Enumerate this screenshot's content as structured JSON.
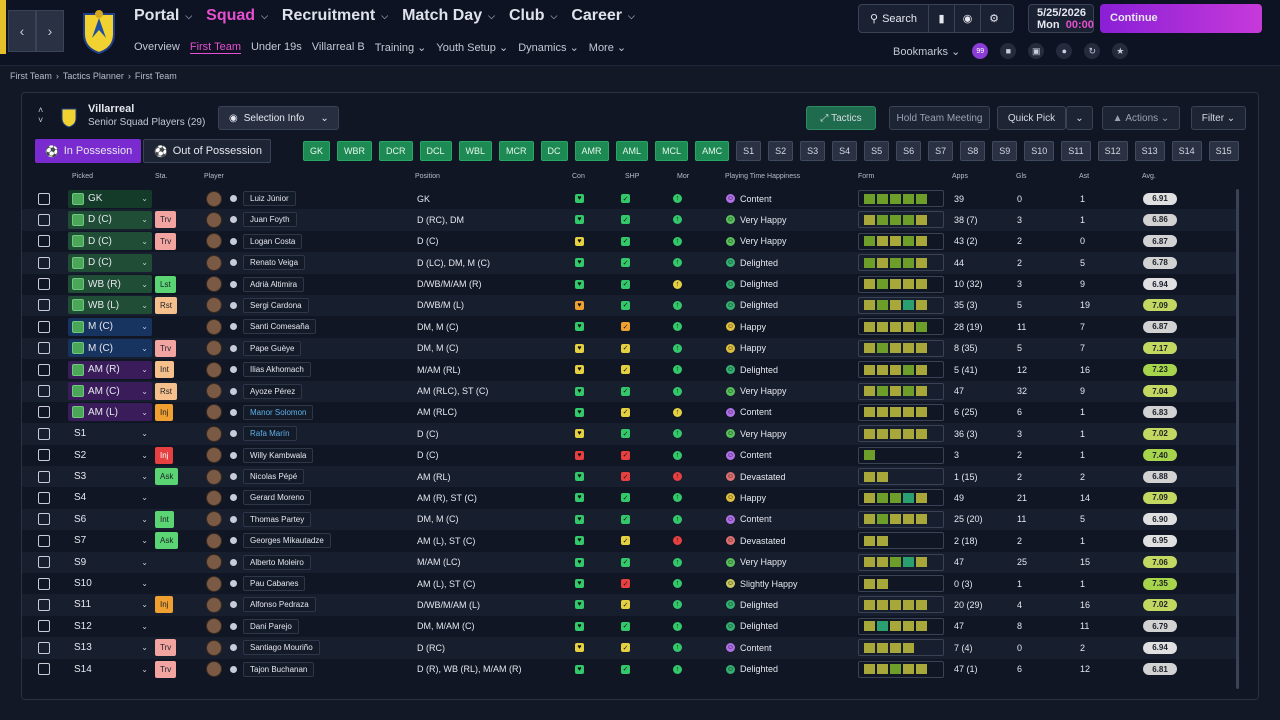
{
  "nav": {
    "main": [
      "Portal",
      "Squad",
      "Recruitment",
      "Match Day",
      "Club",
      "Career"
    ],
    "active_main": "Squad",
    "sub": [
      "Overview",
      "First Team",
      "Under 19s",
      "Villarreal B",
      "Training",
      "Youth Setup",
      "Dynamics",
      "More"
    ],
    "search_label": "Search",
    "date": "5/25/2026",
    "day": "Mon",
    "time": "00:00",
    "continue_label": "Continue",
    "bookmarks_label": "Bookmarks",
    "bookmark_badge": "99"
  },
  "breadcrumb": [
    "First Team",
    "Tactics Planner",
    "First Team"
  ],
  "panel": {
    "club": "Villarreal",
    "subtitle": "Senior Squad Players (29)",
    "selection_info": "Selection Info",
    "tactics": "Tactics",
    "meeting": "Hold Team Meeting",
    "quick_pick": "Quick Pick",
    "actions": "Actions",
    "filter": "Filter",
    "tab_in": "In Possession",
    "tab_out": "Out of Possession"
  },
  "chips": [
    "GK",
    "WBR",
    "DCR",
    "DCL",
    "WBL",
    "MCR",
    "DC",
    "AMR",
    "AML",
    "MCL",
    "AMC",
    "S1",
    "S2",
    "S3",
    "S4",
    "S5",
    "S6",
    "S7",
    "S8",
    "S9",
    "S10",
    "S11",
    "S12",
    "S13",
    "S14",
    "S15"
  ],
  "columns": {
    "picked": "Picked",
    "sta": "Sta.",
    "player": "Player",
    "position": "Position",
    "con": "Con",
    "shp": "SHP",
    "mor": "Mor",
    "pth": "Playing Time Happiness",
    "form": "Form",
    "apps": "Apps",
    "gls": "Gls",
    "ast": "Ast",
    "avg": "Avg."
  },
  "rows": [
    {
      "picked": "GK",
      "pk": "gk",
      "role": "",
      "rc": "",
      "name": "Luiz Júnior",
      "blue": false,
      "pos": "GK",
      "pth": "Content",
      "apps": "39",
      "gls": "0",
      "ast": "1",
      "avg": "6.91",
      "form": [
        "g",
        "g",
        "g",
        "g",
        "g"
      ],
      "shp": "g",
      "mor": "g",
      "con": "g"
    },
    {
      "picked": "D (C)",
      "pk": "d",
      "role": "Trv",
      "rc": "pink",
      "name": "Juan Foyth",
      "blue": false,
      "pos": "D (RC), DM",
      "pth": "Very Happy",
      "apps": "38 (7)",
      "gls": "3",
      "ast": "1",
      "avg": "6.86",
      "form": [
        "y",
        "g",
        "g",
        "g",
        "y"
      ],
      "shp": "g",
      "mor": "g",
      "con": "g"
    },
    {
      "picked": "D (C)",
      "pk": "d",
      "role": "Trv",
      "rc": "pink",
      "name": "Logan Costa",
      "blue": false,
      "pos": "D (C)",
      "pth": "Very Happy",
      "apps": "43 (2)",
      "gls": "2",
      "ast": "0",
      "avg": "6.87",
      "form": [
        "g",
        "y",
        "y",
        "g",
        "y"
      ],
      "shp": "g",
      "mor": "g",
      "con": "y"
    },
    {
      "picked": "D (C)",
      "pk": "d",
      "role": "",
      "rc": "",
      "name": "Renato Veiga",
      "blue": false,
      "pos": "D (LC), DM, M (C)",
      "pth": "Delighted",
      "apps": "44",
      "gls": "2",
      "ast": "5",
      "avg": "6.78",
      "form": [
        "g",
        "y",
        "g",
        "g",
        "y"
      ],
      "shp": "g",
      "mor": "g",
      "con": "g"
    },
    {
      "picked": "WB (R)",
      "pk": "d",
      "role": "Lst",
      "rc": "green",
      "name": "Adrià Altimira",
      "blue": false,
      "pos": "D/WB/M/AM (R)",
      "pth": "Delighted",
      "apps": "10 (32)",
      "gls": "3",
      "ast": "9",
      "avg": "6.94",
      "form": [
        "y",
        "g",
        "y",
        "y",
        "y"
      ],
      "shp": "g",
      "mor": "y",
      "con": "g"
    },
    {
      "picked": "WB (L)",
      "pk": "d",
      "role": "Rst",
      "rc": "salmon",
      "name": "Sergi Cardona",
      "blue": false,
      "pos": "D/WB/M (L)",
      "pth": "Delighted",
      "apps": "35 (3)",
      "gls": "5",
      "ast": "19",
      "avg": "7.09",
      "form": [
        "y",
        "g",
        "y",
        "t",
        "y"
      ],
      "shp": "g",
      "mor": "g",
      "con": "o"
    },
    {
      "picked": "M (C)",
      "pk": "m",
      "role": "",
      "rc": "",
      "name": "Santi Comesaña",
      "blue": false,
      "pos": "DM, M (C)",
      "pth": "Happy",
      "apps": "28 (19)",
      "gls": "11",
      "ast": "7",
      "avg": "6.87",
      "form": [
        "y",
        "y",
        "y",
        "y",
        "g"
      ],
      "shp": "o",
      "mor": "g",
      "con": "g"
    },
    {
      "picked": "M (C)",
      "pk": "m",
      "role": "Trv",
      "rc": "pink",
      "name": "Pape Guèye",
      "blue": false,
      "pos": "DM, M (C)",
      "pth": "Happy",
      "apps": "8 (35)",
      "gls": "5",
      "ast": "7",
      "avg": "7.17",
      "form": [
        "y",
        "g",
        "y",
        "y",
        "y"
      ],
      "shp": "y",
      "mor": "g",
      "con": "y"
    },
    {
      "picked": "AM (R)",
      "pk": "am",
      "role": "Int",
      "rc": "salmon",
      "name": "Ilias Akhomach",
      "blue": false,
      "pos": "M/AM (RL)",
      "pth": "Delighted",
      "apps": "5 (41)",
      "gls": "12",
      "ast": "16",
      "avg": "7.23",
      "form": [
        "y",
        "y",
        "y",
        "g",
        "y"
      ],
      "shp": "y",
      "mor": "g",
      "con": "y"
    },
    {
      "picked": "AM (C)",
      "pk": "am",
      "role": "Rst",
      "rc": "salmon",
      "name": "Ayoze Pérez",
      "blue": false,
      "pos": "AM (RLC), ST (C)",
      "pth": "Very Happy",
      "apps": "47",
      "gls": "32",
      "ast": "9",
      "avg": "7.04",
      "form": [
        "y",
        "g",
        "y",
        "g",
        "y"
      ],
      "shp": "g",
      "mor": "g",
      "con": "g"
    },
    {
      "picked": "AM (L)",
      "pk": "am",
      "role": "Inj",
      "rc": "orange",
      "name": "Manor Solomon",
      "blue": true,
      "pos": "AM (RLC)",
      "pth": "Content",
      "apps": "6 (25)",
      "gls": "6",
      "ast": "1",
      "avg": "6.83",
      "form": [
        "y",
        "y",
        "y",
        "y",
        "y"
      ],
      "shp": "y",
      "mor": "y",
      "con": "g"
    },
    {
      "picked": "S1",
      "pk": "s",
      "role": "",
      "rc": "",
      "name": "Rafa Marín",
      "blue": true,
      "pos": "D (C)",
      "pth": "Very Happy",
      "apps": "36 (3)",
      "gls": "3",
      "ast": "1",
      "avg": "7.02",
      "form": [
        "y",
        "y",
        "y",
        "y",
        "y"
      ],
      "shp": "g",
      "mor": "g",
      "con": "y"
    },
    {
      "picked": "S2",
      "pk": "s",
      "role": "Inj",
      "rc": "red",
      "name": "Willy Kambwala",
      "blue": false,
      "pos": "D (C)",
      "pth": "Content",
      "apps": "3",
      "gls": "2",
      "ast": "1",
      "avg": "7.40",
      "form": [
        "g"
      ],
      "shp": "r",
      "mor": "g",
      "con": "r"
    },
    {
      "picked": "S3",
      "pk": "s",
      "role": "Ask",
      "rc": "green",
      "name": "Nicolas Pépé",
      "blue": false,
      "pos": "AM (RL)",
      "pth": "Devastated",
      "apps": "1 (15)",
      "gls": "2",
      "ast": "2",
      "avg": "6.88",
      "form": [
        "y",
        "y"
      ],
      "shp": "r",
      "mor": "r",
      "con": "g"
    },
    {
      "picked": "S4",
      "pk": "s",
      "role": "",
      "rc": "",
      "name": "Gerard Moreno",
      "blue": false,
      "pos": "AM (R), ST (C)",
      "pth": "Happy",
      "apps": "49",
      "gls": "21",
      "ast": "14",
      "avg": "7.09",
      "form": [
        "y",
        "g",
        "g",
        "t",
        "y"
      ],
      "shp": "g",
      "mor": "g",
      "con": "g"
    },
    {
      "picked": "S6",
      "pk": "s",
      "role": "Int",
      "rc": "green",
      "name": "Thomas Partey",
      "blue": false,
      "pos": "DM, M (C)",
      "pth": "Content",
      "apps": "25 (20)",
      "gls": "11",
      "ast": "5",
      "avg": "6.90",
      "form": [
        "y",
        "g",
        "y",
        "y",
        "y"
      ],
      "shp": "g",
      "mor": "g",
      "con": "g"
    },
    {
      "picked": "S7",
      "pk": "s",
      "role": "Ask",
      "rc": "green",
      "name": "Georges Mikautadze",
      "blue": false,
      "pos": "AM (L), ST (C)",
      "pth": "Devastated",
      "apps": "2 (18)",
      "gls": "2",
      "ast": "1",
      "avg": "6.95",
      "form": [
        "y",
        "y"
      ],
      "shp": "y",
      "mor": "r",
      "con": "g"
    },
    {
      "picked": "S9",
      "pk": "s",
      "role": "",
      "rc": "",
      "name": "Alberto Moleiro",
      "blue": false,
      "pos": "M/AM (LC)",
      "pth": "Very Happy",
      "apps": "47",
      "gls": "25",
      "ast": "15",
      "avg": "7.06",
      "form": [
        "y",
        "y",
        "g",
        "t",
        "y"
      ],
      "shp": "g",
      "mor": "g",
      "con": "g"
    },
    {
      "picked": "S10",
      "pk": "s",
      "role": "",
      "rc": "",
      "name": "Pau Cabanes",
      "blue": false,
      "pos": "AM (L), ST (C)",
      "pth": "Slightly Happy",
      "apps": "0 (3)",
      "gls": "1",
      "ast": "1",
      "avg": "7.35",
      "form": [
        "y",
        "y"
      ],
      "shp": "r",
      "mor": "g",
      "con": "g"
    },
    {
      "picked": "S11",
      "pk": "s",
      "role": "Inj",
      "rc": "orange",
      "name": "Alfonso Pedraza",
      "blue": false,
      "pos": "D/WB/M/AM (L)",
      "pth": "Delighted",
      "apps": "20 (29)",
      "gls": "4",
      "ast": "16",
      "avg": "7.02",
      "form": [
        "y",
        "y",
        "y",
        "y",
        "y"
      ],
      "shp": "y",
      "mor": "g",
      "con": "g"
    },
    {
      "picked": "S12",
      "pk": "s",
      "role": "",
      "rc": "",
      "name": "Dani Parejo",
      "blue": false,
      "pos": "DM, M/AM (C)",
      "pth": "Delighted",
      "apps": "47",
      "gls": "8",
      "ast": "11",
      "avg": "6.79",
      "form": [
        "y",
        "t",
        "y",
        "y",
        "y"
      ],
      "shp": "g",
      "mor": "g",
      "con": "g"
    },
    {
      "picked": "S13",
      "pk": "s",
      "role": "Trv",
      "rc": "pink",
      "name": "Santiago Mouriño",
      "blue": false,
      "pos": "D (RC)",
      "pth": "Content",
      "apps": "7 (4)",
      "gls": "0",
      "ast": "2",
      "avg": "6.94",
      "form": [
        "y",
        "y",
        "y",
        "y"
      ],
      "shp": "y",
      "mor": "g",
      "con": "y"
    },
    {
      "picked": "S14",
      "pk": "s",
      "role": "Trv",
      "rc": "pink",
      "name": "Tajon Buchanan",
      "blue": false,
      "pos": "D (R), WB (RL), M/AM (R)",
      "pth": "Delighted",
      "apps": "47 (1)",
      "gls": "6",
      "ast": "12",
      "avg": "6.81",
      "form": [
        "y",
        "y",
        "g",
        "y",
        "y"
      ],
      "shp": "g",
      "mor": "g",
      "con": "g"
    }
  ],
  "colors": {
    "accent": "#e54fd0",
    "continue": "#a22fd8",
    "green_chip": "#1c8a52",
    "form_good": "#6e9e2a",
    "form_mid": "#a8a83a",
    "form_teal": "#2aa070"
  }
}
